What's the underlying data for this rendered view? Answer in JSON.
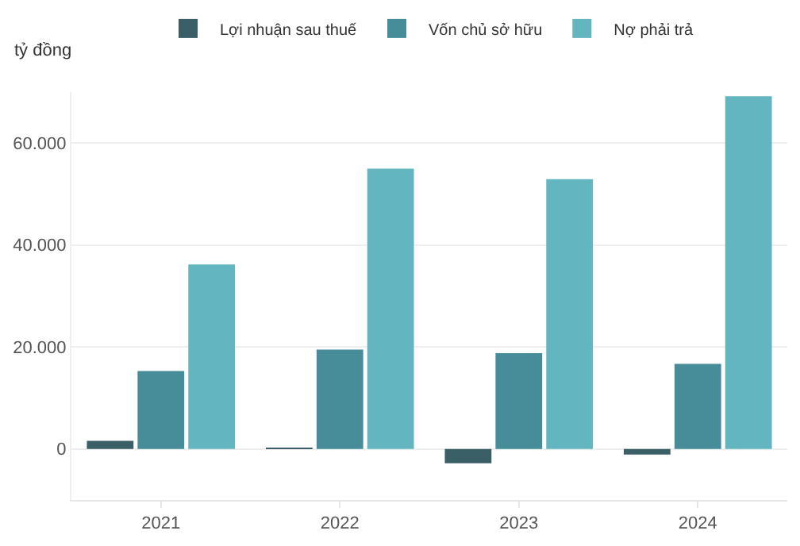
{
  "chart_data": {
    "type": "bar",
    "ylabel": "tỷ đồng",
    "categories": [
      "2021",
      "2022",
      "2023",
      "2024"
    ],
    "series": [
      {
        "name": "Lợi nhuận sau thuế",
        "color": "#3a5f66",
        "values": [
          1600,
          200,
          -2800,
          -1100
        ]
      },
      {
        "name": "Vốn chủ sở hữu",
        "color": "#468d99",
        "values": [
          15300,
          19500,
          18800,
          16700
        ]
      },
      {
        "name": "Nợ phải trả",
        "color": "#63b5bf",
        "values": [
          36200,
          55000,
          52900,
          69200
        ]
      }
    ],
    "ylim": [
      -10000,
      70000
    ],
    "yticks": [
      {
        "value": 0,
        "label": "0"
      },
      {
        "value": 20000,
        "label": "20.000"
      },
      {
        "value": 40000,
        "label": "40.000"
      },
      {
        "value": 60000,
        "label": "60.000"
      }
    ],
    "grid": "y",
    "legend": "top"
  }
}
